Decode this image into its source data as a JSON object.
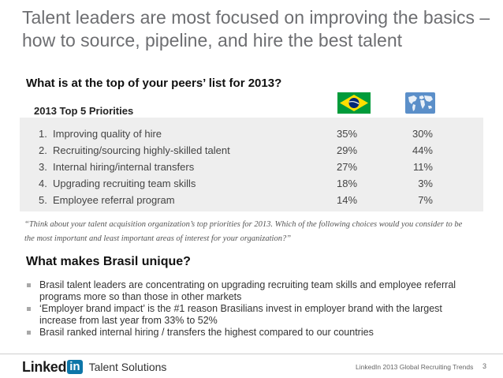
{
  "slide": {
    "title": "Talent leaders are most focused on improving the basics – how to source, pipeline, and hire the best talent",
    "question": "What is at the top of your peers’ list for 2013?"
  },
  "table": {
    "title": "2013 Top 5 Priorities",
    "columns": [
      "brazil-flag",
      "world-map"
    ],
    "rows": [
      {
        "num": "1.",
        "label": "Improving quality of hire",
        "brasil": "35%",
        "global": "30%"
      },
      {
        "num": "2.",
        "label": "Recruiting/sourcing highly-skilled talent",
        "brasil": "29%",
        "global": "44%"
      },
      {
        "num": "3.",
        "label": "Internal hiring/internal transfers",
        "brasil": "27%",
        "global": "11%"
      },
      {
        "num": "4.",
        "label": "Upgrading recruiting team skills",
        "brasil": "18%",
        "global": "3%"
      },
      {
        "num": "5.",
        "label": "Employee referral program",
        "brasil": "14%",
        "global": "7%"
      }
    ]
  },
  "quote": "“Think about your talent acquisition organization’s top priorities for 2013. Which of the following choices would you consider to be the most important and least important areas of interest for your organization?”",
  "section": {
    "title": "What makes Brasil unique?",
    "bullets": [
      "Brasil talent leaders are concentrating on upgrading recruiting team skills and employee referral programs more so than those in other markets",
      "‘Employer brand impact’ is the #1 reason Brasilians invest in employer brand with the largest increase from last year from 33% to 52%",
      "Brasil ranked internal hiring / transfers the highest compared to our countries"
    ]
  },
  "footer": {
    "logo_linked": "Linked",
    "logo_in": "in",
    "logo_product": "Talent Solutions",
    "report": "LinkedIn 2013 Global Recruiting Trends",
    "page": "3"
  },
  "colors": {
    "title": "#6d6e71",
    "table_bg": "#eeeeee",
    "linkedin_blue": "#0e76a8",
    "brazil_green": "#009b3a",
    "brazil_yellow": "#fedf00",
    "brazil_blue": "#002776",
    "world_blue": "#5b8fc9"
  }
}
